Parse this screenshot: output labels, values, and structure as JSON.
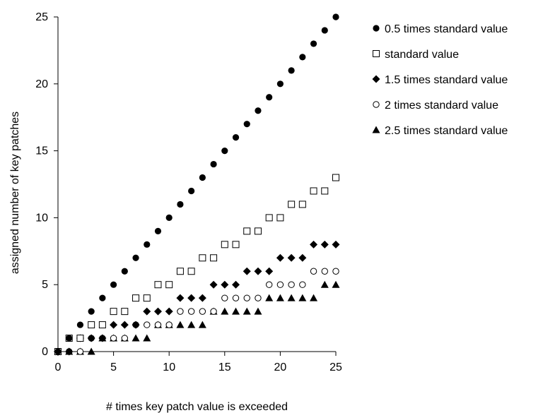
{
  "chart_data": {
    "type": "scatter",
    "title": "",
    "xlabel": "# times key patch value is exceeded",
    "ylabel": "assigned number of key patches",
    "xlim": [
      0,
      25
    ],
    "ylim": [
      0,
      25
    ],
    "xticks": [
      "0",
      "5",
      "10",
      "15",
      "20",
      "25"
    ],
    "yticks": [
      "0",
      "5",
      "10",
      "15",
      "20",
      "25"
    ],
    "grid": false,
    "legend_position": "right",
    "x": [
      0,
      1,
      2,
      3,
      4,
      5,
      6,
      7,
      8,
      9,
      10,
      11,
      12,
      13,
      14,
      15,
      16,
      17,
      18,
      19,
      20,
      21,
      22,
      23,
      24,
      25
    ],
    "series": [
      {
        "name": "0.5 times standard value",
        "marker": "circle-filled",
        "values": [
          0,
          1,
          2,
          3,
          4,
          5,
          6,
          7,
          8,
          9,
          10,
          11,
          12,
          13,
          14,
          15,
          16,
          17,
          18,
          19,
          20,
          21,
          22,
          23,
          24,
          25
        ]
      },
      {
        "name": "standard value",
        "marker": "square-open",
        "values": [
          0,
          1,
          1,
          2,
          2,
          3,
          3,
          4,
          4,
          5,
          5,
          6,
          6,
          7,
          7,
          8,
          8,
          9,
          9,
          10,
          10,
          11,
          11,
          12,
          12,
          13
        ]
      },
      {
        "name": "1.5 times standard value",
        "marker": "diamond-filled",
        "values": [
          0,
          0,
          1,
          1,
          1,
          2,
          2,
          2,
          3,
          3,
          3,
          4,
          4,
          4,
          5,
          5,
          5,
          6,
          6,
          6,
          7,
          7,
          7,
          8,
          8,
          8
        ]
      },
      {
        "name": "2 times standard value",
        "marker": "circle-open",
        "values": [
          0,
          0,
          0,
          1,
          1,
          1,
          1,
          2,
          2,
          2,
          2,
          3,
          3,
          3,
          3,
          4,
          4,
          4,
          4,
          5,
          5,
          5,
          5,
          6,
          6,
          6
        ]
      },
      {
        "name": "2.5 times standard value",
        "marker": "triangle-filled",
        "values": [
          0,
          0,
          0,
          0,
          1,
          1,
          1,
          1,
          1,
          2,
          2,
          2,
          2,
          2,
          3,
          3,
          3,
          3,
          3,
          4,
          4,
          4,
          4,
          4,
          5,
          5
        ]
      }
    ]
  }
}
